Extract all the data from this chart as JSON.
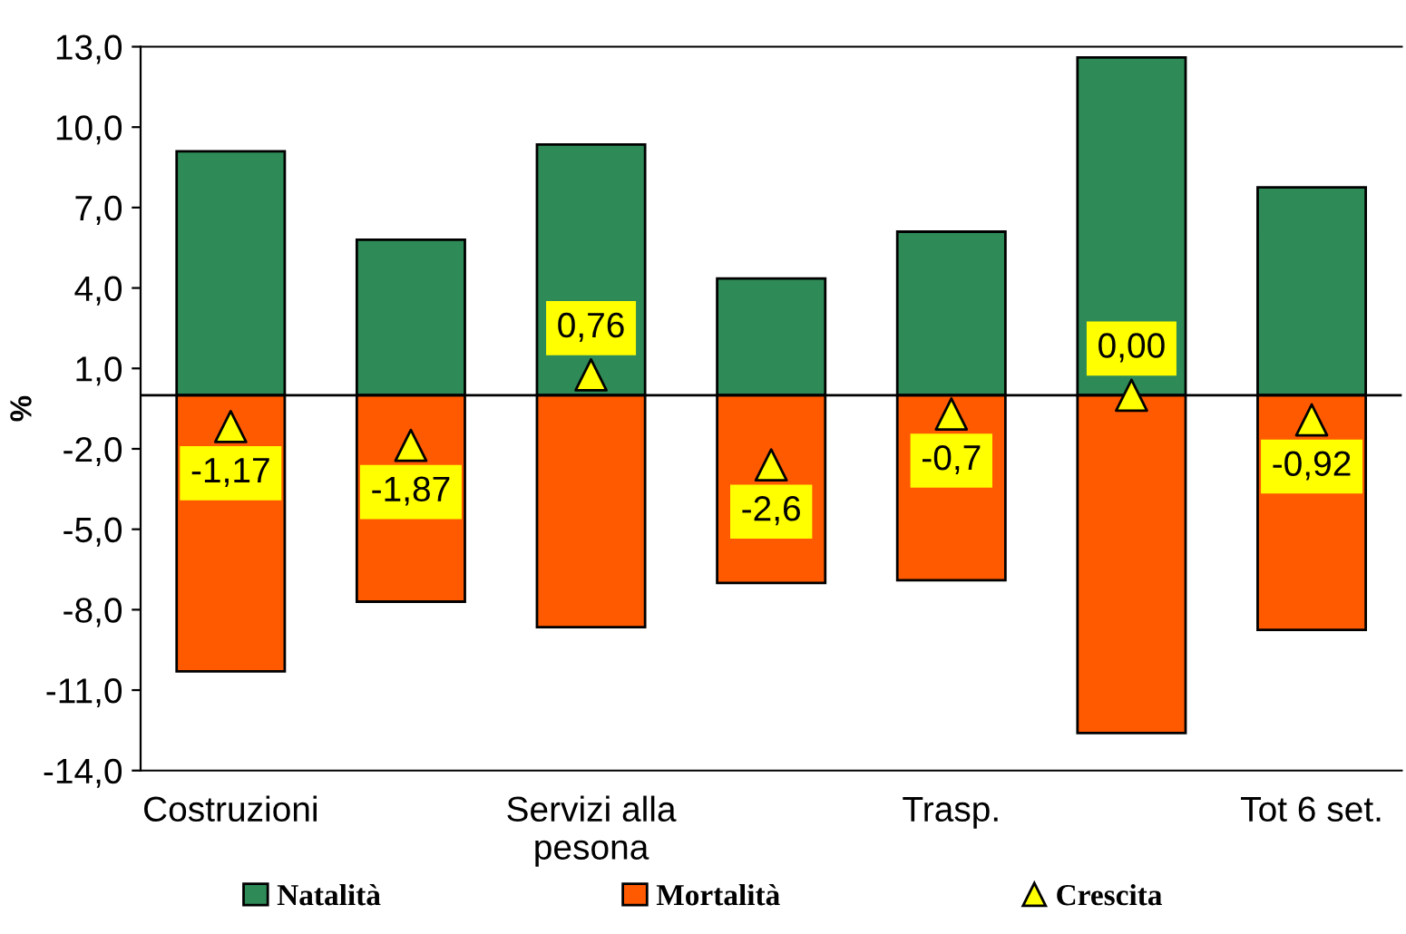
{
  "chart_data": {
    "type": "bar",
    "ylabel": "%",
    "categories": [
      "Costruzioni",
      null,
      "Servizi alla\npesona",
      null,
      "Trasp.",
      null,
      "Tot 6 set."
    ],
    "series": [
      {
        "name": "Natalità",
        "color": "#2e8b57",
        "values": [
          9.1,
          5.8,
          9.35,
          4.35,
          6.1,
          12.6,
          7.75
        ]
      },
      {
        "name": "Mortalità",
        "color": "#ff5a00",
        "values": [
          -10.3,
          -7.7,
          -8.65,
          -7.0,
          -6.9,
          -12.6,
          -8.75
        ]
      },
      {
        "name": "Crescita",
        "type": "scatter",
        "color": "#ffff00",
        "marker": "triangle",
        "values": [
          -1.17,
          -1.87,
          0.76,
          -2.6,
          -0.7,
          0.0,
          -0.92
        ],
        "value_labels": [
          "-1,17",
          "-1,87",
          "0,76",
          "-2,6",
          "-0,7",
          "0,00",
          "-0,92"
        ]
      }
    ],
    "ylim": [
      -14,
      13
    ],
    "yticks": [
      {
        "value": -14,
        "label": "-14,0"
      },
      {
        "value": -11,
        "label": "-11,0"
      },
      {
        "value": -8,
        "label": "-8,0"
      },
      {
        "value": -5,
        "label": "-5,0"
      },
      {
        "value": -2,
        "label": "-2,0"
      },
      {
        "value": 1,
        "label": "1,0"
      },
      {
        "value": 4,
        "label": "4,0"
      },
      {
        "value": 7,
        "label": "7,0"
      },
      {
        "value": 10,
        "label": "10,0"
      },
      {
        "value": 13,
        "label": "13,0"
      }
    ],
    "grid": false,
    "legend": "bottom",
    "stacked": true
  }
}
